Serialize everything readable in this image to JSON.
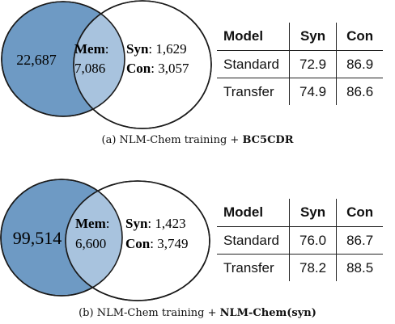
{
  "panels": [
    {
      "venn": {
        "left_only": "22,687",
        "mem_label": "Mem",
        "mem_value": "7,086",
        "syn_label": "Syn",
        "syn_value": "1,629",
        "con_label": "Con",
        "con_value": "3,057"
      },
      "table": {
        "headers": [
          "Model",
          "Syn",
          "Con"
        ],
        "rows": [
          [
            "Standard",
            "72.9",
            "86.9"
          ],
          [
            "Transfer",
            "74.9",
            "86.6"
          ]
        ]
      },
      "caption": {
        "prefix": "(a) NLM-Chem training +",
        "bold": "BC5CDR"
      }
    },
    {
      "venn": {
        "left_only": "99,514",
        "mem_label": "Mem",
        "mem_value": "6,600",
        "syn_label": "Syn",
        "syn_value": "1,423",
        "con_label": "Con",
        "con_value": "3,749"
      },
      "table": {
        "headers": [
          "Model",
          "Syn",
          "Con"
        ],
        "rows": [
          [
            "Standard",
            "76.0",
            "86.7"
          ],
          [
            "Transfer",
            "78.2",
            "88.5"
          ]
        ]
      },
      "caption": {
        "prefix": "(b) NLM-Chem training +",
        "bold": "NLM-Chem(syn)"
      }
    }
  ],
  "colors": {
    "left_circle": "#6e9ac4",
    "overlap": "#a8c3de",
    "right_circle": "#ffffff",
    "stroke": "#1a1a1a"
  }
}
